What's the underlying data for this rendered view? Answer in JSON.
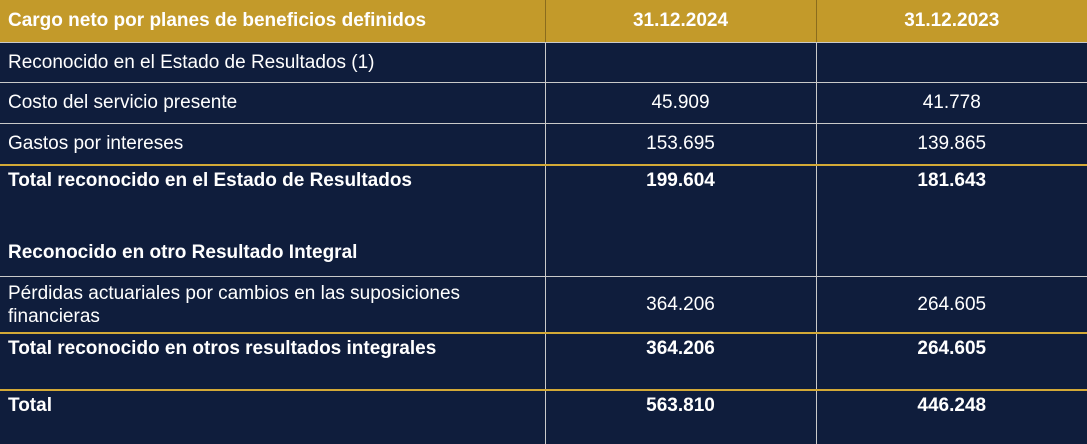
{
  "header": {
    "label": "Cargo neto por planes de beneficios definidos",
    "col1": "31.12.2024",
    "col2": "31.12.2023"
  },
  "rows": [
    {
      "label": "Reconocido en el Estado de Resultados (1)",
      "v2024": "",
      "v2023": ""
    },
    {
      "label": "Costo del servicio presente",
      "v2024": "45.909",
      "v2023": "41.778"
    },
    {
      "label": "Gastos por intereses",
      "v2024": "153.695",
      "v2023": "139.865"
    },
    {
      "label": "Total reconocido en el Estado de Resultados",
      "v2024": "199.604",
      "v2023": "181.643"
    },
    {
      "label": "Reconocido en otro Resultado Integral",
      "v2024": "",
      "v2023": ""
    },
    {
      "label": "Pérdidas actuariales por cambios en las suposiciones financieras",
      "v2024": "364.206",
      "v2023": "264.605"
    },
    {
      "label": "Total reconocido en otros resultados integrales",
      "v2024": "364.206",
      "v2023": "264.605"
    },
    {
      "label": "Total",
      "v2024": "563.810",
      "v2023": "446.248"
    }
  ]
}
